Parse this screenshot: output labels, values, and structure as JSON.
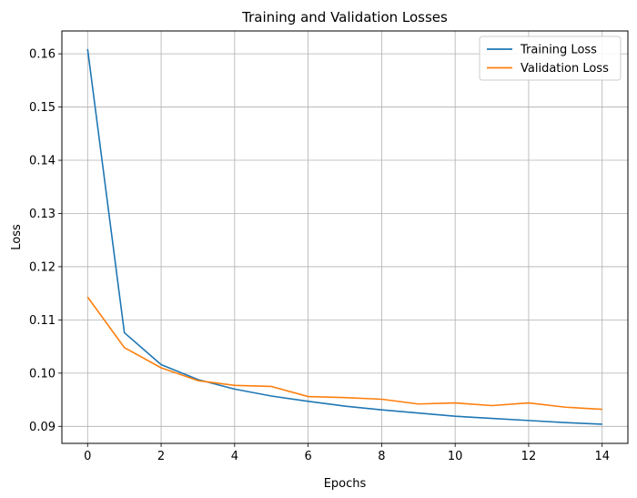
{
  "chart_data": {
    "type": "line",
    "title": "Training and Validation Losses",
    "xlabel": "Epochs",
    "ylabel": "Loss",
    "x": [
      0,
      1,
      2,
      3,
      4,
      5,
      6,
      7,
      8,
      9,
      10,
      11,
      12,
      13,
      14
    ],
    "xlim": [
      -0.7,
      14.7
    ],
    "ylim": [
      0.0868,
      0.1643
    ],
    "xticks": [
      0,
      2,
      4,
      6,
      8,
      10,
      12,
      14
    ],
    "xtick_labels": [
      "0",
      "2",
      "4",
      "6",
      "8",
      "10",
      "12",
      "14"
    ],
    "yticks": [
      0.09,
      0.1,
      0.11,
      0.12,
      0.13,
      0.14,
      0.15,
      0.16
    ],
    "ytick_labels": [
      "0.09",
      "0.10",
      "0.11",
      "0.12",
      "0.13",
      "0.14",
      "0.15",
      "0.16"
    ],
    "grid": true,
    "legend_position": "top-right",
    "series": [
      {
        "name": "Training Loss",
        "color": "#1f77b4",
        "values": [
          0.1609,
          0.1076,
          0.1016,
          0.0988,
          0.097,
          0.0957,
          0.0947,
          0.0938,
          0.0931,
          0.0925,
          0.0919,
          0.0915,
          0.0911,
          0.0907,
          0.0904
        ]
      },
      {
        "name": "Validation Loss",
        "color": "#ff7f0e",
        "values": [
          0.1143,
          0.1048,
          0.101,
          0.0986,
          0.0977,
          0.0975,
          0.0956,
          0.0954,
          0.0951,
          0.0942,
          0.0944,
          0.0939,
          0.0944,
          0.0936,
          0.0932
        ]
      }
    ]
  }
}
